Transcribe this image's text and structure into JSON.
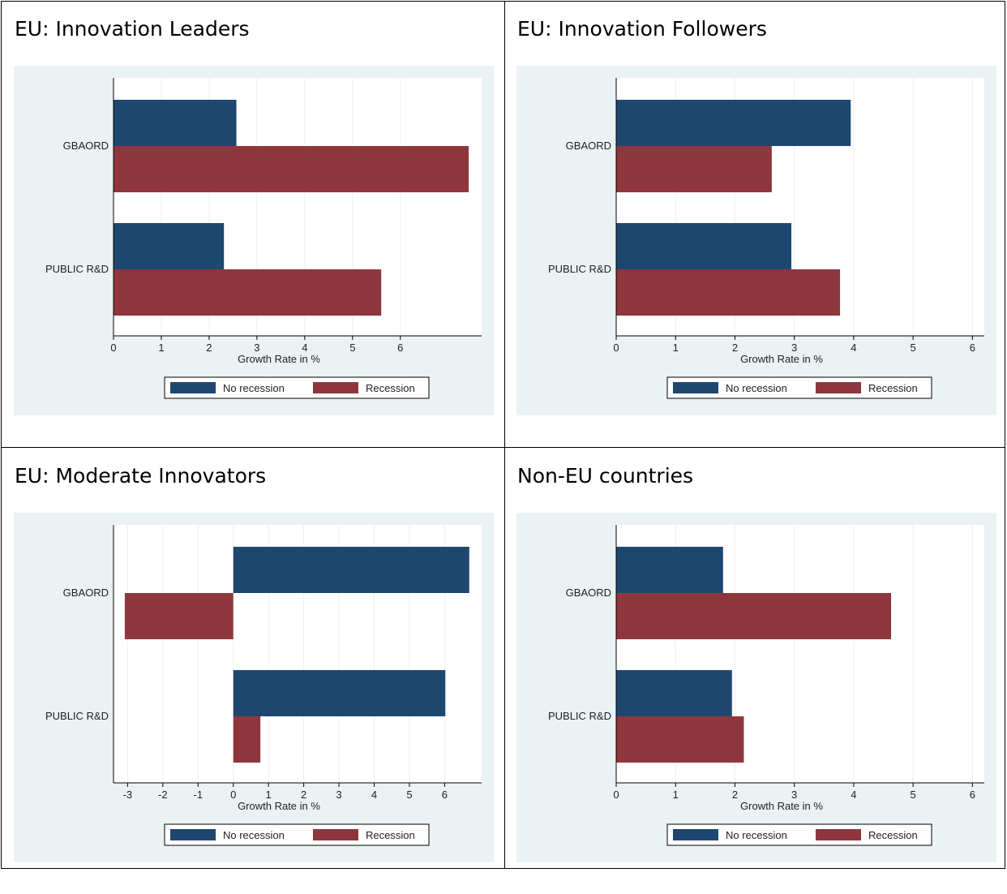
{
  "colors": {
    "no_recession": "#1e4770",
    "recession": "#8f363d",
    "plot_bg": "#eaf2f3",
    "grid": "#eef0f0"
  },
  "legend": {
    "no_recession": "No recession",
    "recession": "Recession"
  },
  "chart_data": [
    {
      "type": "bar",
      "orientation": "horizontal",
      "title": "EU: Innovation Leaders",
      "xlabel": "Growth Rate in %",
      "categories": [
        "GBAORD",
        "PUBLIC R&D"
      ],
      "xlim": [
        0,
        7.7
      ],
      "xticks": [
        0,
        1,
        2,
        3,
        4,
        5,
        6
      ],
      "series": [
        {
          "name": "No recession",
          "values": [
            2.57,
            2.31
          ]
        },
        {
          "name": "Recession",
          "values": [
            7.43,
            5.6
          ]
        }
      ]
    },
    {
      "type": "bar",
      "orientation": "horizontal",
      "title": "EU: Innovation Followers",
      "xlabel": "Growth Rate in %",
      "categories": [
        "GBAORD",
        "PUBLIC R&D"
      ],
      "xlim": [
        0,
        6.2
      ],
      "xticks": [
        0,
        1,
        2,
        3,
        4,
        5,
        6
      ],
      "series": [
        {
          "name": "No recession",
          "values": [
            3.95,
            2.95
          ]
        },
        {
          "name": "Recession",
          "values": [
            2.62,
            3.77
          ]
        }
      ]
    },
    {
      "type": "bar",
      "orientation": "horizontal",
      "title": "EU: Moderate Innovators",
      "xlabel": "Growth Rate in %",
      "categories": [
        "GBAORD",
        "PUBLIC R&D"
      ],
      "xlim": [
        -3.4,
        7.05
      ],
      "xticks": [
        -3,
        -2,
        -1,
        0,
        1,
        2,
        3,
        4,
        5,
        6
      ],
      "series": [
        {
          "name": "No recession",
          "values": [
            6.7,
            6.02
          ]
        },
        {
          "name": "Recession",
          "values": [
            -3.08,
            0.77
          ]
        }
      ]
    },
    {
      "type": "bar",
      "orientation": "horizontal",
      "title": "Non-EU countries",
      "xlabel": "Growth Rate in %",
      "categories": [
        "GBAORD",
        "PUBLIC R&D"
      ],
      "xlim": [
        0,
        6.2
      ],
      "xticks": [
        0,
        1,
        2,
        3,
        4,
        5,
        6
      ],
      "series": [
        {
          "name": "No recession",
          "values": [
            1.8,
            1.95
          ]
        },
        {
          "name": "Recession",
          "values": [
            4.63,
            2.15
          ]
        }
      ]
    }
  ]
}
